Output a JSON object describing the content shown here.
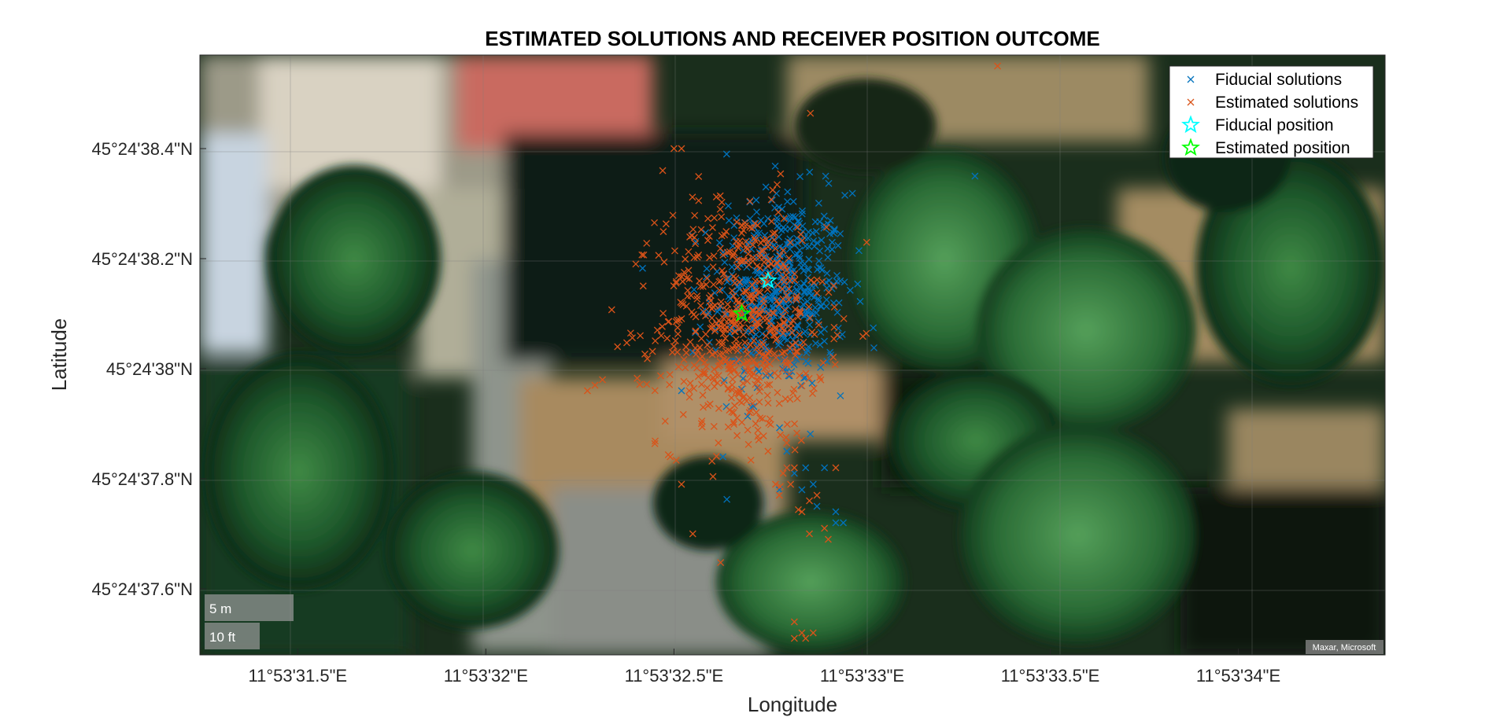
{
  "chart_data": {
    "type": "scatter",
    "title": "ESTIMATED SOLUTIONS AND  RECEIVER POSITION OUTCOME",
    "xlabel": "Longitude",
    "ylabel": "Latitude",
    "xlim_arcsec": [
      31.24,
      34.39
    ],
    "ylim_arcsec": [
      37.48,
      38.57
    ],
    "x_ticks": [
      {
        "value": 31.5,
        "label": "11°53'31.5\"E"
      },
      {
        "value": 32.0,
        "label": "11°53'32\"E"
      },
      {
        "value": 32.5,
        "label": "11°53'32.5\"E"
      },
      {
        "value": 33.0,
        "label": "11°53'33\"E"
      },
      {
        "value": 33.5,
        "label": "11°53'33.5\"E"
      },
      {
        "value": 34.0,
        "label": "11°53'34\"E"
      }
    ],
    "y_ticks": [
      {
        "value": 38.4,
        "label": "45°24'38.4\"N"
      },
      {
        "value": 38.2,
        "label": "45°24'38.2\"N"
      },
      {
        "value": 38.0,
        "label": "45°24'38\"N"
      },
      {
        "value": 37.8,
        "label": "45°24'37.8\"N"
      },
      {
        "value": 37.6,
        "label": "45°24'37.6\"N"
      }
    ],
    "legend_position": "top-right",
    "legend": [
      {
        "label": "Fiducial solutions",
        "marker": "x",
        "color": "#0072BD"
      },
      {
        "label": "Estimated solutions",
        "marker": "x",
        "color": "#D95319"
      },
      {
        "label": "Fiducial position",
        "marker": "star",
        "color": "#00FFFF"
      },
      {
        "label": "Estimated position",
        "marker": "star",
        "color": "#00FF00"
      }
    ],
    "fiducial_position": {
      "lon": 32.75,
      "lat": 38.16
    },
    "estimated_position": {
      "lon": 32.68,
      "lat": 38.1
    },
    "series": [
      {
        "name": "Fiducial solutions",
        "color": "#0072BD",
        "cluster": {
          "center": [
            32.78,
            38.14
          ],
          "spread": [
            0.12,
            0.12
          ],
          "count": 520
        },
        "points": [
          [
            32.64,
            38.39
          ],
          [
            33.3,
            38.35
          ],
          [
            32.85,
            37.82
          ],
          [
            32.93,
            37.74
          ],
          [
            32.9,
            37.82
          ],
          [
            32.8,
            37.85
          ],
          [
            32.84,
            37.78
          ],
          [
            32.93,
            37.72
          ],
          [
            32.78,
            37.78
          ],
          [
            32.82,
            37.81
          ],
          [
            32.88,
            37.75
          ],
          [
            32.95,
            37.72
          ],
          [
            32.63,
            37.84
          ],
          [
            32.55,
            38.03
          ],
          [
            32.52,
            37.96
          ],
          [
            32.8,
            37.82
          ],
          [
            32.87,
            37.79
          ]
        ]
      },
      {
        "name": "Estimated solutions",
        "color": "#D95319",
        "cluster": {
          "center": [
            32.68,
            38.08
          ],
          "spread": [
            0.13,
            0.14
          ],
          "count": 620
        },
        "points": [
          [
            33.36,
            38.55
          ],
          [
            32.5,
            38.4
          ],
          [
            32.52,
            38.4
          ],
          [
            32.47,
            38.36
          ],
          [
            32.27,
            37.96
          ],
          [
            32.29,
            37.97
          ],
          [
            32.31,
            37.98
          ],
          [
            32.35,
            38.04
          ],
          [
            32.79,
            37.81
          ],
          [
            32.81,
            37.79
          ],
          [
            32.86,
            37.76
          ],
          [
            32.9,
            37.71
          ],
          [
            32.86,
            37.7
          ],
          [
            32.84,
            37.74
          ],
          [
            32.91,
            37.69
          ],
          [
            32.82,
            37.82
          ],
          [
            32.77,
            37.79
          ],
          [
            32.55,
            37.7
          ],
          [
            32.52,
            37.79
          ],
          [
            32.49,
            37.84
          ],
          [
            32.82,
            37.54
          ],
          [
            32.84,
            37.52
          ],
          [
            32.82,
            37.51
          ],
          [
            32.87,
            37.52
          ],
          [
            32.85,
            37.51
          ],
          [
            32.8,
            37.82
          ],
          [
            32.88,
            37.77
          ],
          [
            32.78,
            37.77
          ],
          [
            32.93,
            37.82
          ],
          [
            32.75,
            37.85
          ]
        ]
      }
    ]
  },
  "map": {
    "scale_bar": {
      "metric": "5 m",
      "imperial": "10 ft"
    },
    "attribution": "Maxar, Microsoft"
  }
}
